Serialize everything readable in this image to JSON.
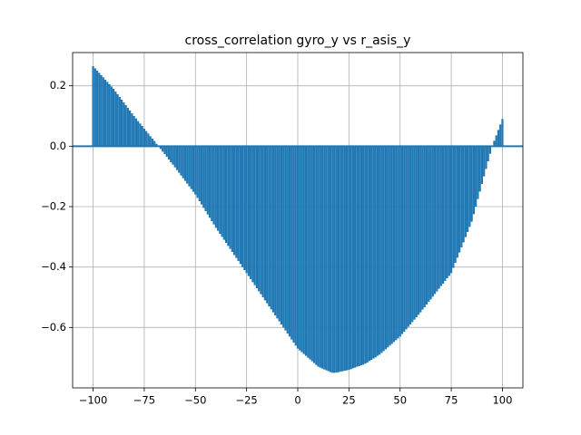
{
  "chart_data": {
    "type": "xcorr",
    "title": "cross_correlation gyro_y vs r_asis_y",
    "color": "#1f77b4",
    "grid": true,
    "xlim": [
      -110,
      110
    ],
    "ylim": [
      -0.8,
      0.31
    ],
    "xticks": [
      {
        "value": -100,
        "label": "−100"
      },
      {
        "value": -75,
        "label": "−75"
      },
      {
        "value": -50,
        "label": "−50"
      },
      {
        "value": -25,
        "label": "−25"
      },
      0,
      25,
      50,
      75,
      100
    ],
    "yticks": [
      {
        "value": -0.6,
        "label": "−0.6"
      },
      {
        "value": -0.4,
        "label": "−0.4"
      },
      {
        "value": -0.2,
        "label": "−0.2"
      },
      {
        "value": 0,
        "label": "0.0"
      },
      0.2
    ],
    "x": [
      -100,
      -99,
      -98,
      -97,
      -96,
      -95,
      -94,
      -93,
      -92,
      -91,
      -90,
      -89,
      -88,
      -87,
      -86,
      -85,
      -84,
      -83,
      -82,
      -81,
      -80,
      -79,
      -78,
      -77,
      -76,
      -75,
      -74,
      -73,
      -72,
      -71,
      -70,
      -69,
      -68,
      -67,
      -66,
      -65,
      -64,
      -63,
      -62,
      -61,
      -60,
      -59,
      -58,
      -57,
      -56,
      -55,
      -54,
      -53,
      -52,
      -51,
      -50,
      -49,
      -48,
      -47,
      -46,
      -45,
      -44,
      -43,
      -42,
      -41,
      -40,
      -39,
      -38,
      -37,
      -36,
      -35,
      -34,
      -33,
      -32,
      -31,
      -30,
      -29,
      -28,
      -27,
      -26,
      -25,
      -24,
      -23,
      -22,
      -21,
      -20,
      -19,
      -18,
      -17,
      -16,
      -15,
      -14,
      -13,
      -12,
      -11,
      -10,
      -9,
      -8,
      -7,
      -6,
      -5,
      -4,
      -3,
      -2,
      -1,
      0,
      1,
      2,
      3,
      4,
      5,
      6,
      7,
      8,
      9,
      10,
      11,
      12,
      13,
      14,
      15,
      16,
      17,
      18,
      19,
      20,
      21,
      22,
      23,
      24,
      25,
      26,
      27,
      28,
      29,
      30,
      31,
      32,
      33,
      34,
      35,
      36,
      37,
      38,
      39,
      40,
      41,
      42,
      43,
      44,
      45,
      46,
      47,
      48,
      49,
      50,
      51,
      52,
      53,
      54,
      55,
      56,
      57,
      58,
      59,
      60,
      61,
      62,
      63,
      64,
      65,
      66,
      67,
      68,
      69,
      70,
      71,
      72,
      73,
      74,
      75,
      76,
      77,
      78,
      79,
      80,
      81,
      82,
      83,
      84,
      85,
      86,
      87,
      88,
      89,
      90,
      91,
      92,
      93,
      94,
      95,
      96,
      97,
      98,
      99,
      100
    ],
    "values": [
      0.265,
      0.258,
      0.25,
      0.243,
      0.235,
      0.228,
      0.22,
      0.213,
      0.205,
      0.198,
      0.19,
      0.181,
      0.172,
      0.163,
      0.154,
      0.145,
      0.136,
      0.127,
      0.118,
      0.109,
      0.1,
      0.092,
      0.083,
      0.075,
      0.067,
      0.058,
      0.05,
      0.042,
      0.033,
      0.025,
      0.017,
      0.008,
      0,
      -0.009,
      -0.018,
      -0.026,
      -0.035,
      -0.044,
      -0.053,
      -0.061,
      -0.07,
      -0.079,
      -0.088,
      -0.097,
      -0.106,
      -0.115,
      -0.124,
      -0.133,
      -0.142,
      -0.151,
      -0.16,
      -0.171,
      -0.182,
      -0.193,
      -0.204,
      -0.215,
      -0.226,
      -0.237,
      -0.248,
      -0.259,
      -0.27,
      -0.28,
      -0.29,
      -0.3,
      -0.31,
      -0.32,
      -0.33,
      -0.34,
      -0.35,
      -0.36,
      -0.37,
      -0.38,
      -0.39,
      -0.4,
      -0.41,
      -0.42,
      -0.43,
      -0.44,
      -0.45,
      -0.46,
      -0.47,
      -0.48,
      -0.49,
      -0.5,
      -0.51,
      -0.52,
      -0.53,
      -0.54,
      -0.55,
      -0.56,
      -0.57,
      -0.58,
      -0.59,
      -0.6,
      -0.61,
      -0.62,
      -0.63,
      -0.64,
      -0.65,
      -0.66,
      -0.67,
      -0.676,
      -0.682,
      -0.688,
      -0.694,
      -0.7,
      -0.706,
      -0.712,
      -0.718,
      -0.724,
      -0.73,
      -0.733,
      -0.736,
      -0.739,
      -0.742,
      -0.745,
      -0.748,
      -0.75,
      -0.75,
      -0.749,
      -0.748,
      -0.746,
      -0.745,
      -0.743,
      -0.742,
      -0.74,
      -0.738,
      -0.735,
      -0.733,
      -0.73,
      -0.728,
      -0.725,
      -0.723,
      -0.72,
      -0.716,
      -0.711,
      -0.707,
      -0.703,
      -0.699,
      -0.694,
      -0.69,
      -0.684,
      -0.678,
      -0.672,
      -0.666,
      -0.66,
      -0.654,
      -0.648,
      -0.642,
      -0.636,
      -0.63,
      -0.622,
      -0.614,
      -0.606,
      -0.598,
      -0.59,
      -0.582,
      -0.574,
      -0.566,
      -0.558,
      -0.55,
      -0.541,
      -0.533,
      -0.524,
      -0.515,
      -0.507,
      -0.498,
      -0.489,
      -0.481,
      -0.472,
      -0.463,
      -0.455,
      -0.446,
      -0.437,
      -0.429,
      -0.42,
      -0.403,
      -0.386,
      -0.369,
      -0.352,
      -0.335,
      -0.318,
      -0.301,
      -0.284,
      -0.267,
      -0.25,
      -0.225,
      -0.2,
      -0.175,
      -0.15,
      -0.125,
      -0.1,
      -0.075,
      -0.05,
      -0.025,
      0,
      0.018,
      0.036,
      0.054,
      0.072,
      0.09
    ]
  }
}
